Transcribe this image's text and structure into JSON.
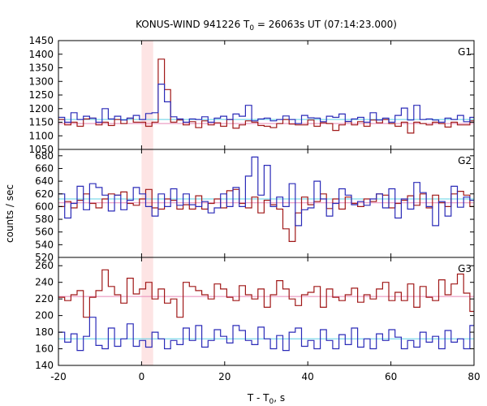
{
  "chart_data": {
    "type": "line",
    "title_main": "KONUS-WIND 941226 T",
    "title_sub": "0",
    "title_rest": " = 26063s UT (07:14:23.000)",
    "xlabel_main": "T - T",
    "xlabel_sub": "0",
    "xlabel_rest": ", s",
    "ylabel": "counts / sec",
    "xlim": [
      -20,
      80
    ],
    "x_ticks": [
      "-20",
      "0",
      "20",
      "40",
      "60",
      "80"
    ],
    "highlight_interval": [
      0,
      2.8
    ],
    "colors": {
      "series_a": "#2b2bb8",
      "series_b": "#a01818",
      "fit_a": "#5fd0e6",
      "fit_b": "#e889b8",
      "highlight": "#fde4e4"
    },
    "bin_width": 1.5,
    "bin_start": -20,
    "panels": [
      {
        "label": "G1",
        "ylim": [
          1050,
          1450
        ],
        "y_ticks": [
          "1050",
          "1100",
          "1150",
          "1200",
          "1250",
          "1300",
          "1350",
          "1400",
          "1450"
        ],
        "series_a_level": 1160,
        "series_b_level": 1145,
        "series_a": [
          1168,
          1150,
          1185,
          1160,
          1172,
          1165,
          1150,
          1200,
          1162,
          1172,
          1158,
          1165,
          1175,
          1160,
          1182,
          1185,
          1290,
          1225,
          1170,
          1162,
          1150,
          1162,
          1160,
          1170,
          1150,
          1165,
          1172,
          1160,
          1180,
          1172,
          1212,
          1155,
          1162,
          1165,
          1155,
          1160,
          1173,
          1160,
          1145,
          1175,
          1166,
          1165,
          1152,
          1172,
          1168,
          1180,
          1153,
          1162,
          1168,
          1150,
          1185,
          1158,
          1165,
          1150,
          1175,
          1202,
          1158,
          1212,
          1160,
          1162,
          1158,
          1150,
          1165,
          1160,
          1175,
          1152,
          1168
        ],
        "series_b": [
          1160,
          1140,
          1150,
          1135,
          1162,
          1165,
          1140,
          1150,
          1138,
          1160,
          1145,
          1165,
          1150,
          1150,
          1135,
          1150,
          1382,
          1270,
          1150,
          1158,
          1140,
          1152,
          1130,
          1155,
          1140,
          1148,
          1135,
          1160,
          1128,
          1140,
          1155,
          1150,
          1138,
          1135,
          1130,
          1145,
          1160,
          1143,
          1140,
          1140,
          1158,
          1135,
          1148,
          1145,
          1120,
          1140,
          1152,
          1140,
          1152,
          1135,
          1158,
          1148,
          1160,
          1145,
          1135,
          1150,
          1110,
          1150,
          1145,
          1140,
          1150,
          1145,
          1132,
          1150,
          1140,
          1140,
          1155
        ]
      },
      {
        "label": "G2",
        "ylim": [
          520,
          690
        ],
        "y_ticks": [
          "520",
          "540",
          "560",
          "580",
          "600",
          "620",
          "640",
          "660",
          "680"
        ],
        "series_a_level": 612,
        "series_b_level": 606,
        "series_a": [
          620,
          582,
          605,
          632,
          595,
          636,
          630,
          618,
          593,
          618,
          595,
          610,
          630,
          620,
          600,
          585,
          620,
          600,
          628,
          602,
          620,
          603,
          600,
          608,
          590,
          598,
          620,
          600,
          630,
          600,
          648,
          678,
          618,
          665,
          600,
          615,
          600,
          636,
          570,
          595,
          598,
          640,
          612,
          585,
          605,
          628,
          618,
          603,
          608,
          602,
          612,
          620,
          598,
          628,
          582,
          612,
          596,
          638,
          622,
          600,
          570,
          608,
          585,
          632,
          599,
          615,
          610
        ],
        "series_b": [
          600,
          608,
          598,
          610,
          620,
          605,
          598,
          612,
          620,
          618,
          623,
          605,
          602,
          612,
          627,
          598,
          596,
          612,
          610,
          596,
          603,
          596,
          617,
          596,
          605,
          612,
          598,
          625,
          627,
          605,
          598,
          615,
          590,
          610,
          603,
          596,
          565,
          545,
          590,
          615,
          603,
          608,
          620,
          597,
          612,
          596,
          615,
          605,
          600,
          612,
          608,
          620,
          618,
          598,
          605,
          610,
          617,
          602,
          620,
          598,
          618,
          606,
          600,
          620,
          624,
          618,
          600
        ]
      },
      {
        "label": "G3",
        "ylim": [
          140,
          270
        ],
        "y_ticks": [
          "140",
          "160",
          "180",
          "200",
          "220",
          "240",
          "260"
        ],
        "series_a_level": 172,
        "series_b_level": 223,
        "series_a": [
          180,
          168,
          178,
          158,
          175,
          198,
          164,
          160,
          185,
          163,
          172,
          190,
          163,
          170,
          162,
          180,
          172,
          160,
          170,
          165,
          185,
          170,
          188,
          162,
          170,
          183,
          175,
          167,
          188,
          182,
          170,
          165,
          186,
          172,
          160,
          176,
          158,
          180,
          185,
          163,
          170,
          160,
          183,
          170,
          160,
          177,
          165,
          185,
          162,
          172,
          160,
          178,
          170,
          183,
          174,
          160,
          170,
          162,
          180,
          168,
          175,
          160,
          182,
          168,
          172,
          160,
          188
        ],
        "series_b": [
          222,
          218,
          225,
          230,
          198,
          222,
          230,
          255,
          235,
          225,
          215,
          245,
          226,
          232,
          240,
          220,
          232,
          215,
          220,
          198,
          240,
          235,
          230,
          225,
          220,
          238,
          232,
          222,
          218,
          236,
          225,
          220,
          232,
          210,
          225,
          242,
          232,
          220,
          212,
          225,
          228,
          235,
          210,
          232,
          222,
          218,
          225,
          233,
          216,
          225,
          220,
          232,
          240,
          218,
          228,
          218,
          238,
          210,
          235,
          222,
          218,
          243,
          225,
          238,
          250,
          227,
          205
        ]
      }
    ]
  }
}
